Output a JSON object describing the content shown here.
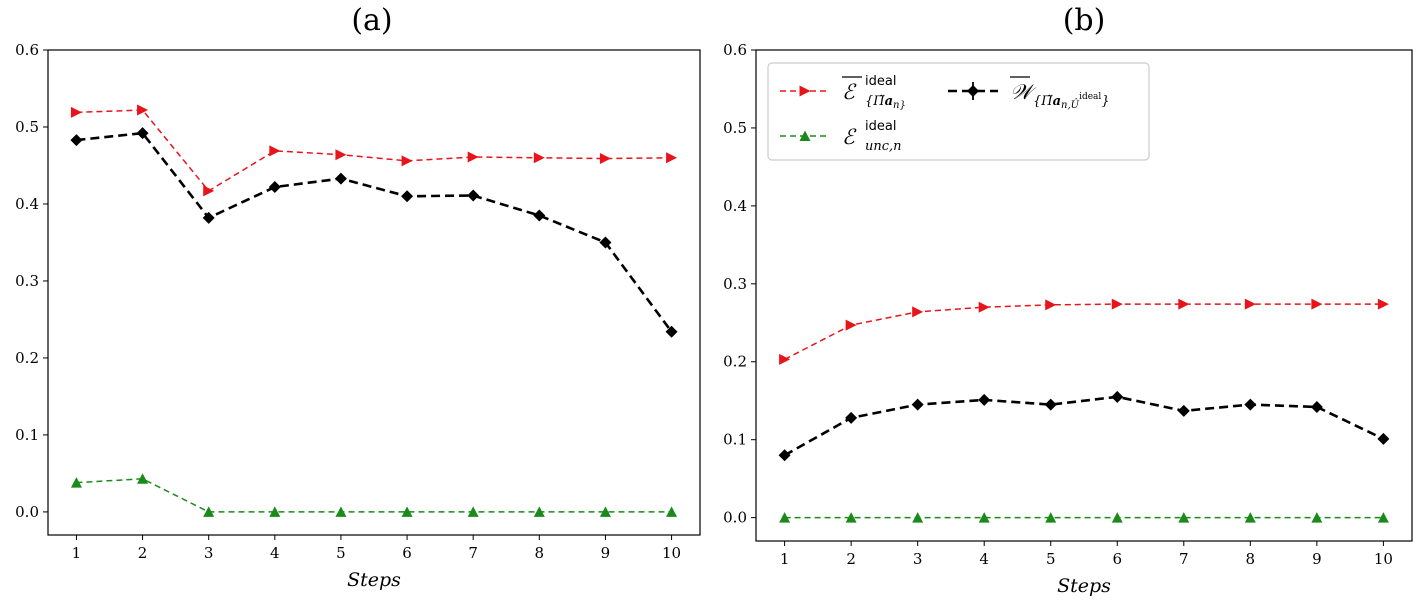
{
  "chart_data": [
    {
      "type": "line",
      "title": "(a)",
      "xlabel": "Steps",
      "ylabel": "",
      "x": [
        1,
        2,
        3,
        4,
        5,
        6,
        7,
        8,
        9,
        10
      ],
      "xticks": [
        "1",
        "2",
        "3",
        "4",
        "5",
        "6",
        "7",
        "8",
        "9",
        "10"
      ],
      "ylim": [
        -0.03,
        0.6
      ],
      "yticks": [
        "0.0",
        "0.1",
        "0.2",
        "0.3",
        "0.4",
        "0.5",
        "0.6"
      ],
      "grid": false,
      "legend": null,
      "series": [
        {
          "key": "E_ideal",
          "color": "#e8141c",
          "marker": "triangle-right",
          "linestyle": "dashed-thin",
          "values": [
            0.519,
            0.522,
            0.417,
            0.469,
            0.464,
            0.456,
            0.461,
            0.46,
            0.459,
            0.46
          ]
        },
        {
          "key": "W_bar",
          "color": "#000000",
          "marker": "diamond",
          "linestyle": "dashed-thick",
          "values": [
            0.483,
            0.492,
            0.382,
            0.422,
            0.433,
            0.41,
            0.411,
            0.385,
            0.35,
            0.234
          ]
        },
        {
          "key": "E_unc",
          "color": "#1a8a1a",
          "marker": "triangle-up",
          "linestyle": "dashed-thin",
          "values": [
            0.038,
            0.043,
            0.0,
            0.0,
            0.0,
            0.0,
            0.0,
            0.0,
            0.0,
            0.0
          ]
        }
      ]
    },
    {
      "type": "line",
      "title": "(b)",
      "xlabel": "Steps",
      "ylabel": "",
      "x": [
        1,
        2,
        3,
        4,
        5,
        6,
        7,
        8,
        9,
        10
      ],
      "xticks": [
        "1",
        "2",
        "3",
        "4",
        "5",
        "6",
        "7",
        "8",
        "9",
        "10"
      ],
      "ylim": [
        -0.03,
        0.6
      ],
      "yticks": [
        "0.0",
        "0.1",
        "0.2",
        "0.3",
        "0.4",
        "0.5",
        "0.6"
      ],
      "grid": false,
      "legend": {
        "placement": "top-left",
        "entries": [
          {
            "key": "E_ideal",
            "main": "ℰ",
            "overline": true,
            "sup": "ideal",
            "sub": "{Π̃",
            "sub_bold": "a",
            "sub_tail": "n}"
          },
          {
            "key": "W_bar",
            "main": "𝒲",
            "overline": true,
            "sub": "{Π̃",
            "sub_bold": "a",
            "sub_tail": "n,Û",
            "sub_sup": "ideal",
            "sub_end": "}"
          },
          {
            "key": "E_unc",
            "main": "ℰ",
            "overline": false,
            "sup": "ideal",
            "sub": "unc,n"
          }
        ]
      },
      "series": [
        {
          "key": "E_ideal",
          "color": "#e8141c",
          "marker": "triangle-right",
          "linestyle": "dashed-thin",
          "values": [
            0.203,
            0.247,
            0.264,
            0.27,
            0.273,
            0.274,
            0.274,
            0.274,
            0.274,
            0.274
          ]
        },
        {
          "key": "W_bar",
          "color": "#000000",
          "marker": "diamond",
          "linestyle": "dashed-thick",
          "values": [
            0.08,
            0.128,
            0.145,
            0.151,
            0.145,
            0.155,
            0.137,
            0.145,
            0.142,
            0.101
          ]
        },
        {
          "key": "E_unc",
          "color": "#1a8a1a",
          "marker": "triangle-up",
          "linestyle": "dashed-thin",
          "values": [
            0.0,
            0.0,
            0.0,
            0.0,
            0.0,
            0.0,
            0.0,
            0.0,
            0.0,
            0.0
          ]
        }
      ]
    }
  ]
}
